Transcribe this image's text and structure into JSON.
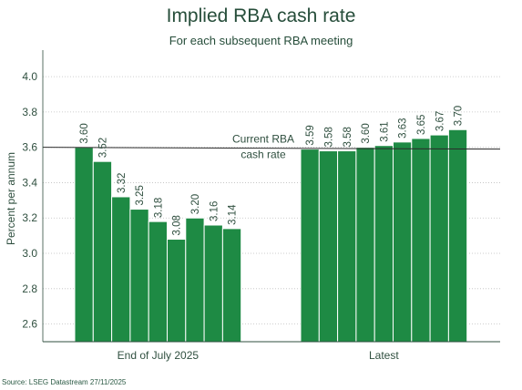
{
  "title": "Implied RBA cash rate",
  "subtitle": "For each subsequent RBA meeting",
  "source": "Source: LSEG Datastream 27/11/2025",
  "colors": {
    "bar": "#1e8a44",
    "text": "#2f4f3f",
    "reference_line": "#2a2a2a",
    "grid": "#bfbfbf"
  },
  "chart_data": {
    "type": "bar",
    "title": "Implied RBA cash rate",
    "subtitle": "For each subsequent RBA meeting",
    "ylabel": "Percent per annum",
    "xlabel": "",
    "ylim": [
      2.5,
      4.15
    ],
    "yticks": [
      2.6,
      2.8,
      3.0,
      3.2,
      3.4,
      3.6,
      3.8,
      4.0
    ],
    "ytick_labels": [
      "2.6",
      "2.8",
      "3.0",
      "3.2",
      "3.4",
      "3.6",
      "3.8",
      "4.0"
    ],
    "grid": "horizontal dotted",
    "groups": [
      {
        "label": "End of July 2025",
        "values": [
          3.6,
          3.52,
          3.32,
          3.25,
          3.18,
          3.08,
          3.2,
          3.16,
          3.14
        ],
        "value_labels": [
          "3.60",
          "3.52",
          "3.32",
          "3.25",
          "3.18",
          "3.08",
          "3.20",
          "3.16",
          "3.14"
        ]
      },
      {
        "label": "Latest",
        "values": [
          3.59,
          3.58,
          3.58,
          3.6,
          3.61,
          3.63,
          3.65,
          3.67,
          3.7
        ],
        "value_labels": [
          "3.59",
          "3.58",
          "3.58",
          "3.60",
          "3.61",
          "3.63",
          "3.65",
          "3.67",
          "3.70"
        ]
      }
    ],
    "reference_line": {
      "value": 3.6,
      "label_line1": "Current RBA",
      "label_line2": "cash rate"
    }
  }
}
